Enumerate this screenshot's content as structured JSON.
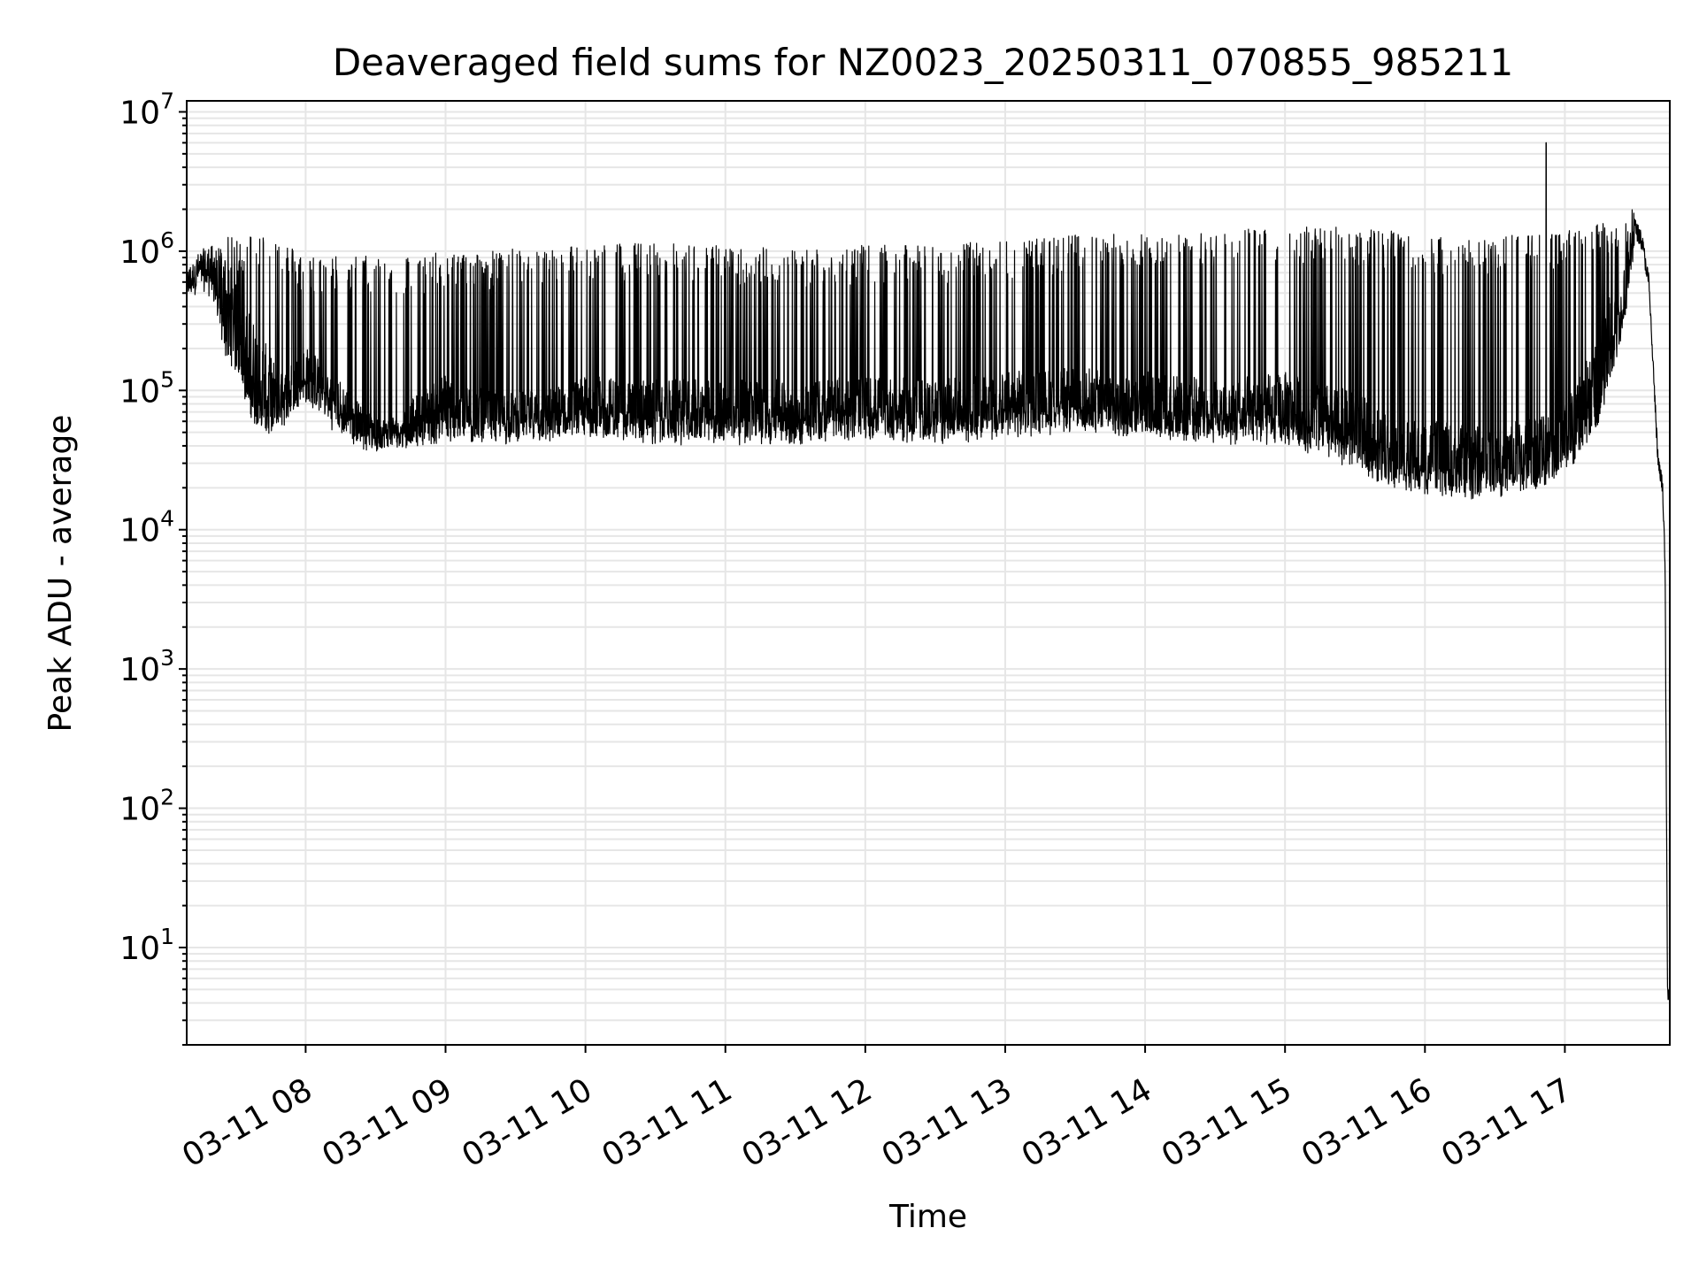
{
  "chart_data": {
    "type": "line",
    "title": "Deaveraged field sums for NZ0023_20250311_070855_985211",
    "xlabel": "Time",
    "ylabel": "Peak ADU - average",
    "yscale": "log",
    "ylim": [
      2,
      12000000
    ],
    "xlim": [
      "03-11 07:09",
      "03-11 17:45"
    ],
    "grid": true,
    "line_color": "#000000",
    "grid_color": "#e6e6e6",
    "x_ticks": [
      "03-11 08",
      "03-11 09",
      "03-11 10",
      "03-11 11",
      "03-11 12",
      "03-11 13",
      "03-11 14",
      "03-11 15",
      "03-11 16",
      "03-11 17"
    ],
    "y_ticks": [
      {
        "base": "10",
        "exp": "1",
        "value": 10
      },
      {
        "base": "10",
        "exp": "2",
        "value": 100
      },
      {
        "base": "10",
        "exp": "3",
        "value": 1000
      },
      {
        "base": "10",
        "exp": "4",
        "value": 10000
      },
      {
        "base": "10",
        "exp": "5",
        "value": 100000
      },
      {
        "base": "10",
        "exp": "6",
        "value": 1000000
      },
      {
        "base": "10",
        "exp": "7",
        "value": 10000000
      }
    ],
    "series": [
      {
        "x": [
          "03-11 07:09",
          "03-11 07:15",
          "03-11 07:20",
          "03-11 07:25",
          "03-11 07:30",
          "03-11 07:35",
          "03-11 07:40",
          "03-11 07:45",
          "03-11 07:50",
          "03-11 07:55",
          "03-11 08:00",
          "03-11 08:10",
          "03-11 08:20",
          "03-11 08:30",
          "03-11 08:40",
          "03-11 08:50",
          "03-11 09:00",
          "03-11 09:15",
          "03-11 09:30",
          "03-11 09:45",
          "03-11 10:00",
          "03-11 10:30",
          "03-11 11:00",
          "03-11 11:30",
          "03-11 12:00",
          "03-11 12:30",
          "03-11 13:00",
          "03-11 13:30",
          "03-11 14:00",
          "03-11 14:30",
          "03-11 15:00",
          "03-11 15:30",
          "03-11 15:45",
          "03-11 16:00",
          "03-11 16:20",
          "03-11 16:40",
          "03-11 17:00",
          "03-11 17:15",
          "03-11 17:25",
          "03-11 17:30",
          "03-11 17:33",
          "03-11 17:36",
          "03-11 17:40",
          "03-11 17:42",
          "03-11 17:43",
          "03-11 17:44",
          "03-11 17:45"
        ],
        "baseline": [
          550000,
          750000,
          850000,
          900000,
          500000,
          350000,
          250000,
          150000,
          100000,
          130000,
          160000,
          120000,
          70000,
          45000,
          50000,
          80000,
          110000,
          80000,
          75000,
          80000,
          100000,
          95000,
          95000,
          95000,
          100000,
          95000,
          110000,
          115000,
          110000,
          95000,
          110000,
          80000,
          55000,
          50000,
          45000,
          50000,
          70000,
          300000,
          600000,
          1500000,
          1200000,
          600000,
          30000,
          20000,
          5000,
          5,
          4
        ],
        "spike_top": [
          650000,
          900000,
          1100000,
          1200000,
          1200000,
          1300000,
          1300000,
          1300000,
          1200000,
          1000000,
          900000,
          900000,
          900000,
          900000,
          900000,
          900000,
          950000,
          950000,
          1000000,
          1000000,
          1100000,
          1100000,
          1050000,
          1000000,
          1050000,
          1050000,
          1150000,
          1250000,
          1300000,
          1300000,
          1500000,
          1400000,
          1350000,
          1200000,
          1200000,
          1250000,
          1350000,
          1500000,
          1600000,
          2500000,
          1500000,
          null,
          null,
          null,
          null,
          null,
          null
        ],
        "spike_min": [
          450000,
          600000,
          500000,
          200000,
          150000,
          80000,
          55000,
          50000,
          60000,
          70000,
          90000,
          60000,
          45000,
          38000,
          40000,
          45000,
          45000,
          45000,
          45000,
          45000,
          50000,
          45000,
          45000,
          45000,
          50000,
          45000,
          50000,
          55000,
          50000,
          45000,
          45000,
          30000,
          22000,
          20000,
          18000,
          20000,
          25000,
          60000,
          300000,
          1000000,
          null,
          null,
          null,
          null,
          null,
          null,
          null
        ],
        "peak": {
          "x": "03-11 16:52",
          "y": 6000000
        }
      }
    ]
  }
}
